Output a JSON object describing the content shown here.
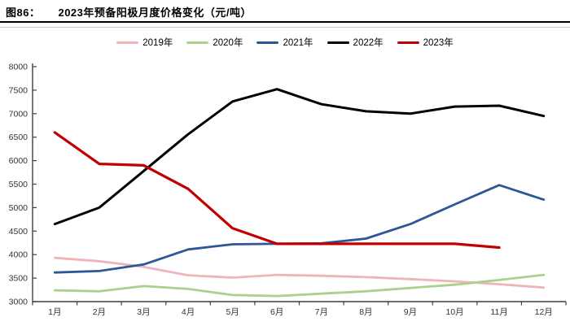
{
  "header": {
    "figure_label": "图86：",
    "title": "2023年预备阳极月度价格变化（元/吨）"
  },
  "chart_data": {
    "type": "line",
    "title": "2023年预备阳极月度价格变化（元/吨）",
    "unit": "元/吨",
    "categories": [
      "1月",
      "2月",
      "3月",
      "4月",
      "5月",
      "6月",
      "7月",
      "8月",
      "9月",
      "10月",
      "11月",
      "12月"
    ],
    "series": [
      {
        "name": "2019年",
        "color": "#F0B3BA",
        "values": [
          3930,
          3860,
          3740,
          3560,
          3510,
          3570,
          3550,
          3520,
          3480,
          3430,
          3370,
          3300
        ]
      },
      {
        "name": "2020年",
        "color": "#A9D18E",
        "values": [
          3240,
          3220,
          3330,
          3270,
          3140,
          3120,
          3170,
          3220,
          3290,
          3360,
          3460,
          3570
        ]
      },
      {
        "name": "2021年",
        "color": "#2D5699",
        "values": [
          3620,
          3650,
          3790,
          4110,
          4220,
          4230,
          4240,
          4340,
          4650,
          5070,
          5480,
          5170
        ]
      },
      {
        "name": "2022年",
        "color": "#000000",
        "values": [
          4650,
          5000,
          5780,
          6560,
          7260,
          7520,
          7200,
          7050,
          7000,
          7150,
          7170,
          6950
        ]
      },
      {
        "name": "2023年",
        "color": "#C00000",
        "values": [
          6600,
          5930,
          5900,
          5400,
          4560,
          4230,
          4230,
          4230,
          4230,
          4230,
          4150,
          null
        ]
      }
    ],
    "ylim": [
      3000,
      8000
    ],
    "ytick_step": 500,
    "grid": false,
    "legend_position": "top"
  }
}
